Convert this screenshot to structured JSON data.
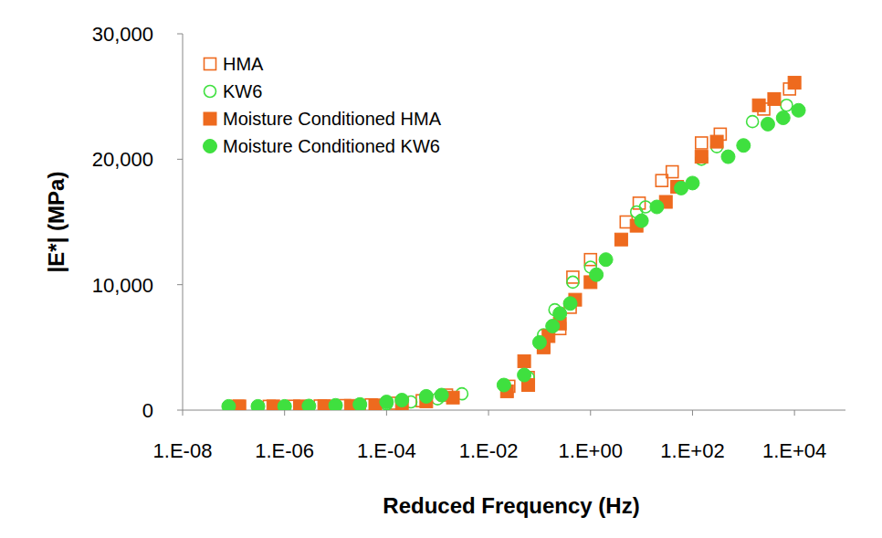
{
  "chart_data": {
    "type": "scatter",
    "x_label": "Reduced Frequency (Hz)",
    "y_label": "|E*| (MPa)",
    "log": "x",
    "grid": false,
    "legend": "top-left",
    "xlim": [
      1e-08,
      100000.0
    ],
    "xticks": [
      {
        "value": 1e-08,
        "label": "1.E-08"
      },
      {
        "value": 1e-06,
        "label": "1.E-06"
      },
      {
        "value": 0.0001,
        "label": "1.E-04"
      },
      {
        "value": 0.01,
        "label": "1.E-02"
      },
      {
        "value": 1,
        "label": "1.E+00"
      },
      {
        "value": 100,
        "label": "1.E+02"
      },
      {
        "value": 10000,
        "label": "1.E+04"
      }
    ],
    "ylim": [
      0,
      30000
    ],
    "yticks": [
      0,
      {
        "value": 10000,
        "label": "10,000"
      },
      {
        "value": 20000,
        "label": "20,000"
      },
      {
        "value": 30000,
        "label": "30,000"
      }
    ],
    "series": [
      {
        "name": "HMA",
        "color": "#ee6a1e",
        "marker": "open_square",
        "x": [
          1.2e-07,
          5e-07,
          1.5e-06,
          5e-06,
          1.5e-05,
          5e-05,
          0.00015,
          0.0005,
          0.0015,
          0.025,
          0.06,
          0.12,
          0.25,
          0.4,
          0.45,
          1.0,
          5,
          9,
          25,
          40,
          150,
          350,
          2500,
          8000
        ],
        "values": [
          300,
          300,
          310,
          330,
          360,
          420,
          550,
          750,
          1200,
          1900,
          2600,
          5100,
          6500,
          8200,
          10600,
          12000,
          15000,
          16500,
          18300,
          19000,
          21300,
          22000,
          24000,
          25600
        ]
      },
      {
        "name": "KW6",
        "color": "#3fe03f",
        "marker": "open_circle",
        "x": [
          3e-07,
          1e-06,
          3e-06,
          1e-05,
          3e-05,
          0.0001,
          0.0003,
          0.001,
          0.003,
          0.06,
          0.12,
          0.2,
          0.45,
          1.0,
          8,
          12,
          150,
          300,
          1500,
          7000
        ],
        "values": [
          250,
          280,
          300,
          330,
          380,
          480,
          650,
          900,
          1300,
          2600,
          6000,
          8000,
          10200,
          11400,
          15800,
          16200,
          20000,
          21000,
          23000,
          24300
        ]
      },
      {
        "name": "Moisture Conditioned HMA",
        "color": "#ee6a1e",
        "marker": "square",
        "x": [
          1.3e-07,
          6e-07,
          2e-06,
          6e-06,
          2e-05,
          6e-05,
          0.0002,
          0.0006,
          0.002,
          0.023,
          0.06,
          0.05,
          0.12,
          0.15,
          0.25,
          0.5,
          1,
          4,
          8,
          30,
          50,
          150,
          300,
          2000,
          4000,
          10000
        ],
        "values": [
          300,
          300,
          300,
          320,
          340,
          380,
          550,
          700,
          1000,
          1500,
          2000,
          3900,
          5000,
          5900,
          6900,
          8800,
          10200,
          13600,
          14700,
          16600,
          17800,
          20200,
          21400,
          24300,
          24800,
          26100
        ]
      },
      {
        "name": "Moisture Conditioned KW6",
        "color": "#3fe03f",
        "marker": "circle",
        "x": [
          8e-08,
          3e-07,
          1e-06,
          3e-06,
          1e-05,
          3e-05,
          0.0001,
          0.0002,
          0.0006,
          0.0012,
          0.02,
          0.05,
          0.1,
          0.18,
          0.25,
          0.4,
          1.3,
          2,
          10,
          20,
          60,
          100,
          500,
          1000,
          3000,
          6000,
          12000
        ],
        "values": [
          300,
          300,
          300,
          330,
          380,
          450,
          650,
          800,
          1100,
          1200,
          2000,
          2800,
          5400,
          6700,
          7700,
          8500,
          10800,
          12000,
          15100,
          16200,
          17700,
          18100,
          20200,
          21100,
          22800,
          23300,
          23900
        ]
      }
    ]
  }
}
